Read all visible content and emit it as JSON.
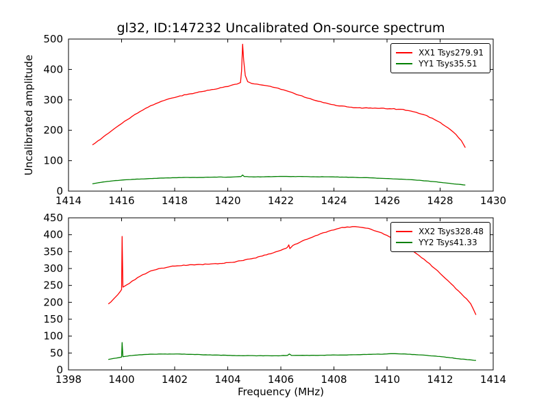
{
  "figure": {
    "title": "gl32, ID:147232 Uncalibrated On-source spectrum",
    "xlabel": "Frequency (MHz)",
    "ylabel": "Uncalibrated amplitude",
    "background": "#ffffff",
    "frame_color": "#000000",
    "text_color": "#000000"
  },
  "chart_data": [
    {
      "type": "line",
      "title": "gl32, ID:147232 Uncalibrated On-source spectrum",
      "xlabel": "",
      "ylabel": "Uncalibrated amplitude",
      "xlim": [
        1414,
        1430
      ],
      "ylim": [
        0,
        500
      ],
      "xticks": [
        1414,
        1416,
        1418,
        1420,
        1422,
        1424,
        1426,
        1428,
        1430
      ],
      "yticks": [
        0,
        100,
        200,
        300,
        400,
        500
      ],
      "grid": false,
      "legend_position": "upper right",
      "series": [
        {
          "name": "XX1 Tsys279.91",
          "color": "#ff0000",
          "noise": 2.5,
          "points": [
            [
              1414.9,
              152
            ],
            [
              1415.2,
              170
            ],
            [
              1415.5,
              190
            ],
            [
              1415.8,
              210
            ],
            [
              1416.1,
              229
            ],
            [
              1416.4,
              246
            ],
            [
              1416.7,
              262
            ],
            [
              1417.0,
              276
            ],
            [
              1417.3,
              288
            ],
            [
              1417.6,
              298
            ],
            [
              1417.9,
              306
            ],
            [
              1418.2,
              313
            ],
            [
              1418.6,
              320
            ],
            [
              1419.0,
              327
            ],
            [
              1419.4,
              334
            ],
            [
              1419.8,
              341
            ],
            [
              1420.1,
              347
            ],
            [
              1420.35,
              352
            ],
            [
              1420.48,
              357
            ],
            [
              1420.52,
              395
            ],
            [
              1420.56,
              483
            ],
            [
              1420.6,
              430
            ],
            [
              1420.66,
              380
            ],
            [
              1420.75,
              360
            ],
            [
              1420.9,
              354
            ],
            [
              1421.2,
              350
            ],
            [
              1421.5,
              346
            ],
            [
              1421.8,
              340
            ],
            [
              1422.1,
              333
            ],
            [
              1422.4,
              325
            ],
            [
              1422.7,
              315
            ],
            [
              1423.0,
              306
            ],
            [
              1423.3,
              298
            ],
            [
              1423.6,
              291
            ],
            [
              1423.9,
              285
            ],
            [
              1424.2,
              280
            ],
            [
              1424.5,
              277
            ],
            [
              1424.9,
              274
            ],
            [
              1425.3,
              273
            ],
            [
              1425.7,
              272
            ],
            [
              1426.1,
              271
            ],
            [
              1426.5,
              269
            ],
            [
              1426.8,
              265
            ],
            [
              1427.1,
              259
            ],
            [
              1427.4,
              251
            ],
            [
              1427.7,
              240
            ],
            [
              1428.0,
              226
            ],
            [
              1428.3,
              208
            ],
            [
              1428.6,
              186
            ],
            [
              1428.8,
              166
            ],
            [
              1428.95,
              143
            ]
          ]
        },
        {
          "name": "YY1 Tsys35.51",
          "color": "#007f00",
          "noise": 0.8,
          "points": [
            [
              1414.9,
              24
            ],
            [
              1415.3,
              30
            ],
            [
              1415.7,
              34
            ],
            [
              1416.1,
              37
            ],
            [
              1416.5,
              39
            ],
            [
              1417.0,
              41
            ],
            [
              1417.5,
              43
            ],
            [
              1418.0,
              44
            ],
            [
              1418.5,
              45
            ],
            [
              1419.0,
              45
            ],
            [
              1419.5,
              46
            ],
            [
              1420.0,
              46
            ],
            [
              1420.3,
              47
            ],
            [
              1420.5,
              48
            ],
            [
              1420.56,
              53
            ],
            [
              1420.62,
              48
            ],
            [
              1420.9,
              47
            ],
            [
              1421.3,
              47
            ],
            [
              1421.8,
              48
            ],
            [
              1422.3,
              48
            ],
            [
              1422.8,
              48
            ],
            [
              1423.3,
              47
            ],
            [
              1423.8,
              47
            ],
            [
              1424.3,
              46
            ],
            [
              1424.8,
              45
            ],
            [
              1425.3,
              44
            ],
            [
              1425.8,
              42
            ],
            [
              1426.3,
              40
            ],
            [
              1426.8,
              38
            ],
            [
              1427.3,
              35
            ],
            [
              1427.8,
              31
            ],
            [
              1428.2,
              27
            ],
            [
              1428.6,
              23
            ],
            [
              1428.95,
              20
            ]
          ]
        }
      ]
    },
    {
      "type": "line",
      "title": "",
      "xlabel": "Frequency (MHz)",
      "ylabel": "",
      "xlim": [
        1398,
        1414
      ],
      "ylim": [
        0,
        450
      ],
      "xticks": [
        1398,
        1400,
        1402,
        1404,
        1406,
        1408,
        1410,
        1412,
        1414
      ],
      "yticks": [
        0,
        50,
        100,
        150,
        200,
        250,
        300,
        350,
        400,
        450
      ],
      "grid": false,
      "legend_position": "upper right",
      "series": [
        {
          "name": "XX2 Tsys328.48",
          "color": "#ff0000",
          "noise": 2.5,
          "points": [
            [
              1399.5,
              195
            ],
            [
              1399.7,
              210
            ],
            [
              1399.85,
              222
            ],
            [
              1399.95,
              232
            ],
            [
              1400.0,
              238
            ],
            [
              1400.02,
              395
            ],
            [
              1400.05,
              245
            ],
            [
              1400.2,
              252
            ],
            [
              1400.4,
              263
            ],
            [
              1400.6,
              273
            ],
            [
              1400.8,
              282
            ],
            [
              1401.0,
              289
            ],
            [
              1401.2,
              295
            ],
            [
              1401.5,
              301
            ],
            [
              1401.8,
              305
            ],
            [
              1402.1,
              308
            ],
            [
              1402.5,
              310
            ],
            [
              1402.9,
              312
            ],
            [
              1403.3,
              313
            ],
            [
              1403.7,
              315
            ],
            [
              1404.1,
              318
            ],
            [
              1404.5,
              323
            ],
            [
              1404.9,
              329
            ],
            [
              1405.3,
              337
            ],
            [
              1405.7,
              346
            ],
            [
              1406.0,
              354
            ],
            [
              1406.2,
              360
            ],
            [
              1406.25,
              363
            ],
            [
              1406.3,
              370
            ],
            [
              1406.34,
              359
            ],
            [
              1406.45,
              368
            ],
            [
              1406.7,
              377
            ],
            [
              1407.0,
              387
            ],
            [
              1407.3,
              397
            ],
            [
              1407.6,
              406
            ],
            [
              1407.9,
              413
            ],
            [
              1408.2,
              419
            ],
            [
              1408.5,
              423
            ],
            [
              1408.8,
              424
            ],
            [
              1409.1,
              421
            ],
            [
              1409.4,
              416
            ],
            [
              1409.7,
              408
            ],
            [
              1410.0,
              398
            ],
            [
              1410.3,
              386
            ],
            [
              1410.6,
              372
            ],
            [
              1410.9,
              356
            ],
            [
              1411.2,
              339
            ],
            [
              1411.5,
              320
            ],
            [
              1411.8,
              300
            ],
            [
              1412.1,
              278
            ],
            [
              1412.4,
              256
            ],
            [
              1412.7,
              233
            ],
            [
              1413.0,
              210
            ],
            [
              1413.15,
              196
            ],
            [
              1413.25,
              180
            ],
            [
              1413.35,
              163
            ]
          ]
        },
        {
          "name": "YY2 Tsys41.33",
          "color": "#007f00",
          "noise": 0.8,
          "points": [
            [
              1399.5,
              31
            ],
            [
              1399.8,
              35
            ],
            [
              1400.0,
              38
            ],
            [
              1400.02,
              81
            ],
            [
              1400.05,
              39
            ],
            [
              1400.3,
              42
            ],
            [
              1400.6,
              44
            ],
            [
              1401.0,
              46
            ],
            [
              1401.4,
              47
            ],
            [
              1401.8,
              47
            ],
            [
              1402.2,
              47
            ],
            [
              1402.6,
              46
            ],
            [
              1403.0,
              45
            ],
            [
              1403.5,
              44
            ],
            [
              1404.0,
              43
            ],
            [
              1404.5,
              42
            ],
            [
              1405.0,
              42
            ],
            [
              1405.5,
              42
            ],
            [
              1406.0,
              42
            ],
            [
              1406.25,
              43
            ],
            [
              1406.32,
              47
            ],
            [
              1406.4,
              43
            ],
            [
              1406.9,
              43
            ],
            [
              1407.4,
              43
            ],
            [
              1407.9,
              44
            ],
            [
              1408.4,
              44
            ],
            [
              1408.9,
              45
            ],
            [
              1409.4,
              46
            ],
            [
              1409.9,
              47
            ],
            [
              1410.3,
              48
            ],
            [
              1410.7,
              47
            ],
            [
              1411.1,
              45
            ],
            [
              1411.5,
              43
            ],
            [
              1411.9,
              40
            ],
            [
              1412.3,
              37
            ],
            [
              1412.7,
              33
            ],
            [
              1413.1,
              30
            ],
            [
              1413.35,
              28
            ]
          ]
        }
      ]
    }
  ]
}
